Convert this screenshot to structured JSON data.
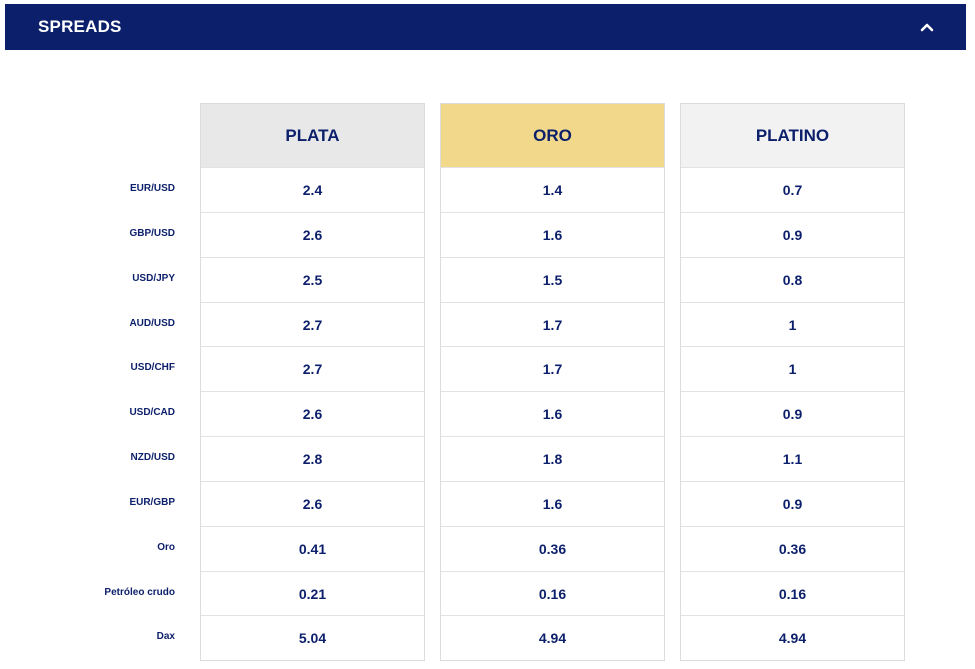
{
  "header": {
    "title": "SPREADS",
    "toggle_icon": "chevron-up-icon",
    "background_color": "#0c1f6b"
  },
  "colors": {
    "text": "#0c1f6b",
    "plata_header_bg": "#e8e8e8",
    "oro_header_bg": "#f2d88a",
    "platino_header_bg": "#f2f2f2"
  },
  "table": {
    "instruments": [
      "EUR/USD",
      "GBP/USD",
      "USD/JPY",
      "AUD/USD",
      "USD/CHF",
      "USD/CAD",
      "NZD/USD",
      "EUR/GBP",
      "Oro",
      "Petróleo crudo",
      "Dax"
    ],
    "columns": [
      {
        "name": "PLATA",
        "values": [
          "2.4",
          "2.6",
          "2.5",
          "2.7",
          "2.7",
          "2.6",
          "2.8",
          "2.6",
          "0.41",
          "0.21",
          "5.04"
        ]
      },
      {
        "name": "ORO",
        "values": [
          "1.4",
          "1.6",
          "1.5",
          "1.7",
          "1.7",
          "1.6",
          "1.8",
          "1.6",
          "0.36",
          "0.16",
          "4.94"
        ]
      },
      {
        "name": "PLATINO",
        "values": [
          "0.7",
          "0.9",
          "0.8",
          "1",
          "1",
          "0.9",
          "1.1",
          "0.9",
          "0.36",
          "0.16",
          "4.94"
        ]
      }
    ]
  }
}
